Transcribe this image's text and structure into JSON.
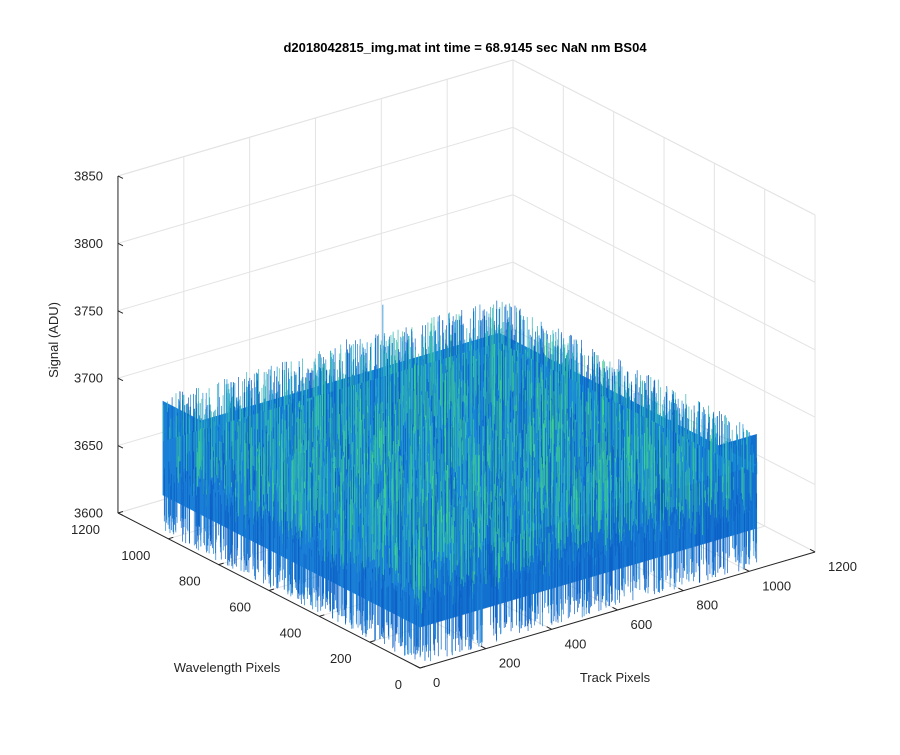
{
  "chart_data": {
    "type": "surface",
    "title": "d2018042815_img.mat int time = 68.9145 sec   NaN nm BS04",
    "xlabel": "Track Pixels",
    "ylabel": "Wavelength Pixels",
    "zlabel": "Signal (ADU)",
    "xlim": [
      0,
      1200
    ],
    "ylim": [
      0,
      1200
    ],
    "zlim": [
      3600,
      3850
    ],
    "xticks": [
      "0",
      "200",
      "400",
      "600",
      "800",
      "1000",
      "1200"
    ],
    "yticks": [
      "0",
      "200",
      "400",
      "600",
      "800",
      "1000",
      "1200"
    ],
    "zticks": [
      "3600",
      "3650",
      "3700",
      "3750",
      "3800",
      "3850"
    ],
    "x_extent": [
      1,
      1024
    ],
    "y_extent": [
      1,
      1024
    ],
    "z_mean": 3665,
    "z_noise_range": [
      3630,
      3700
    ],
    "z_max_spike": 3745,
    "grid": true,
    "colormap": "parula",
    "colors": [
      "#0d5fc6",
      "#1a8bd8",
      "#2fb3b8",
      "#3fcf8f"
    ]
  }
}
